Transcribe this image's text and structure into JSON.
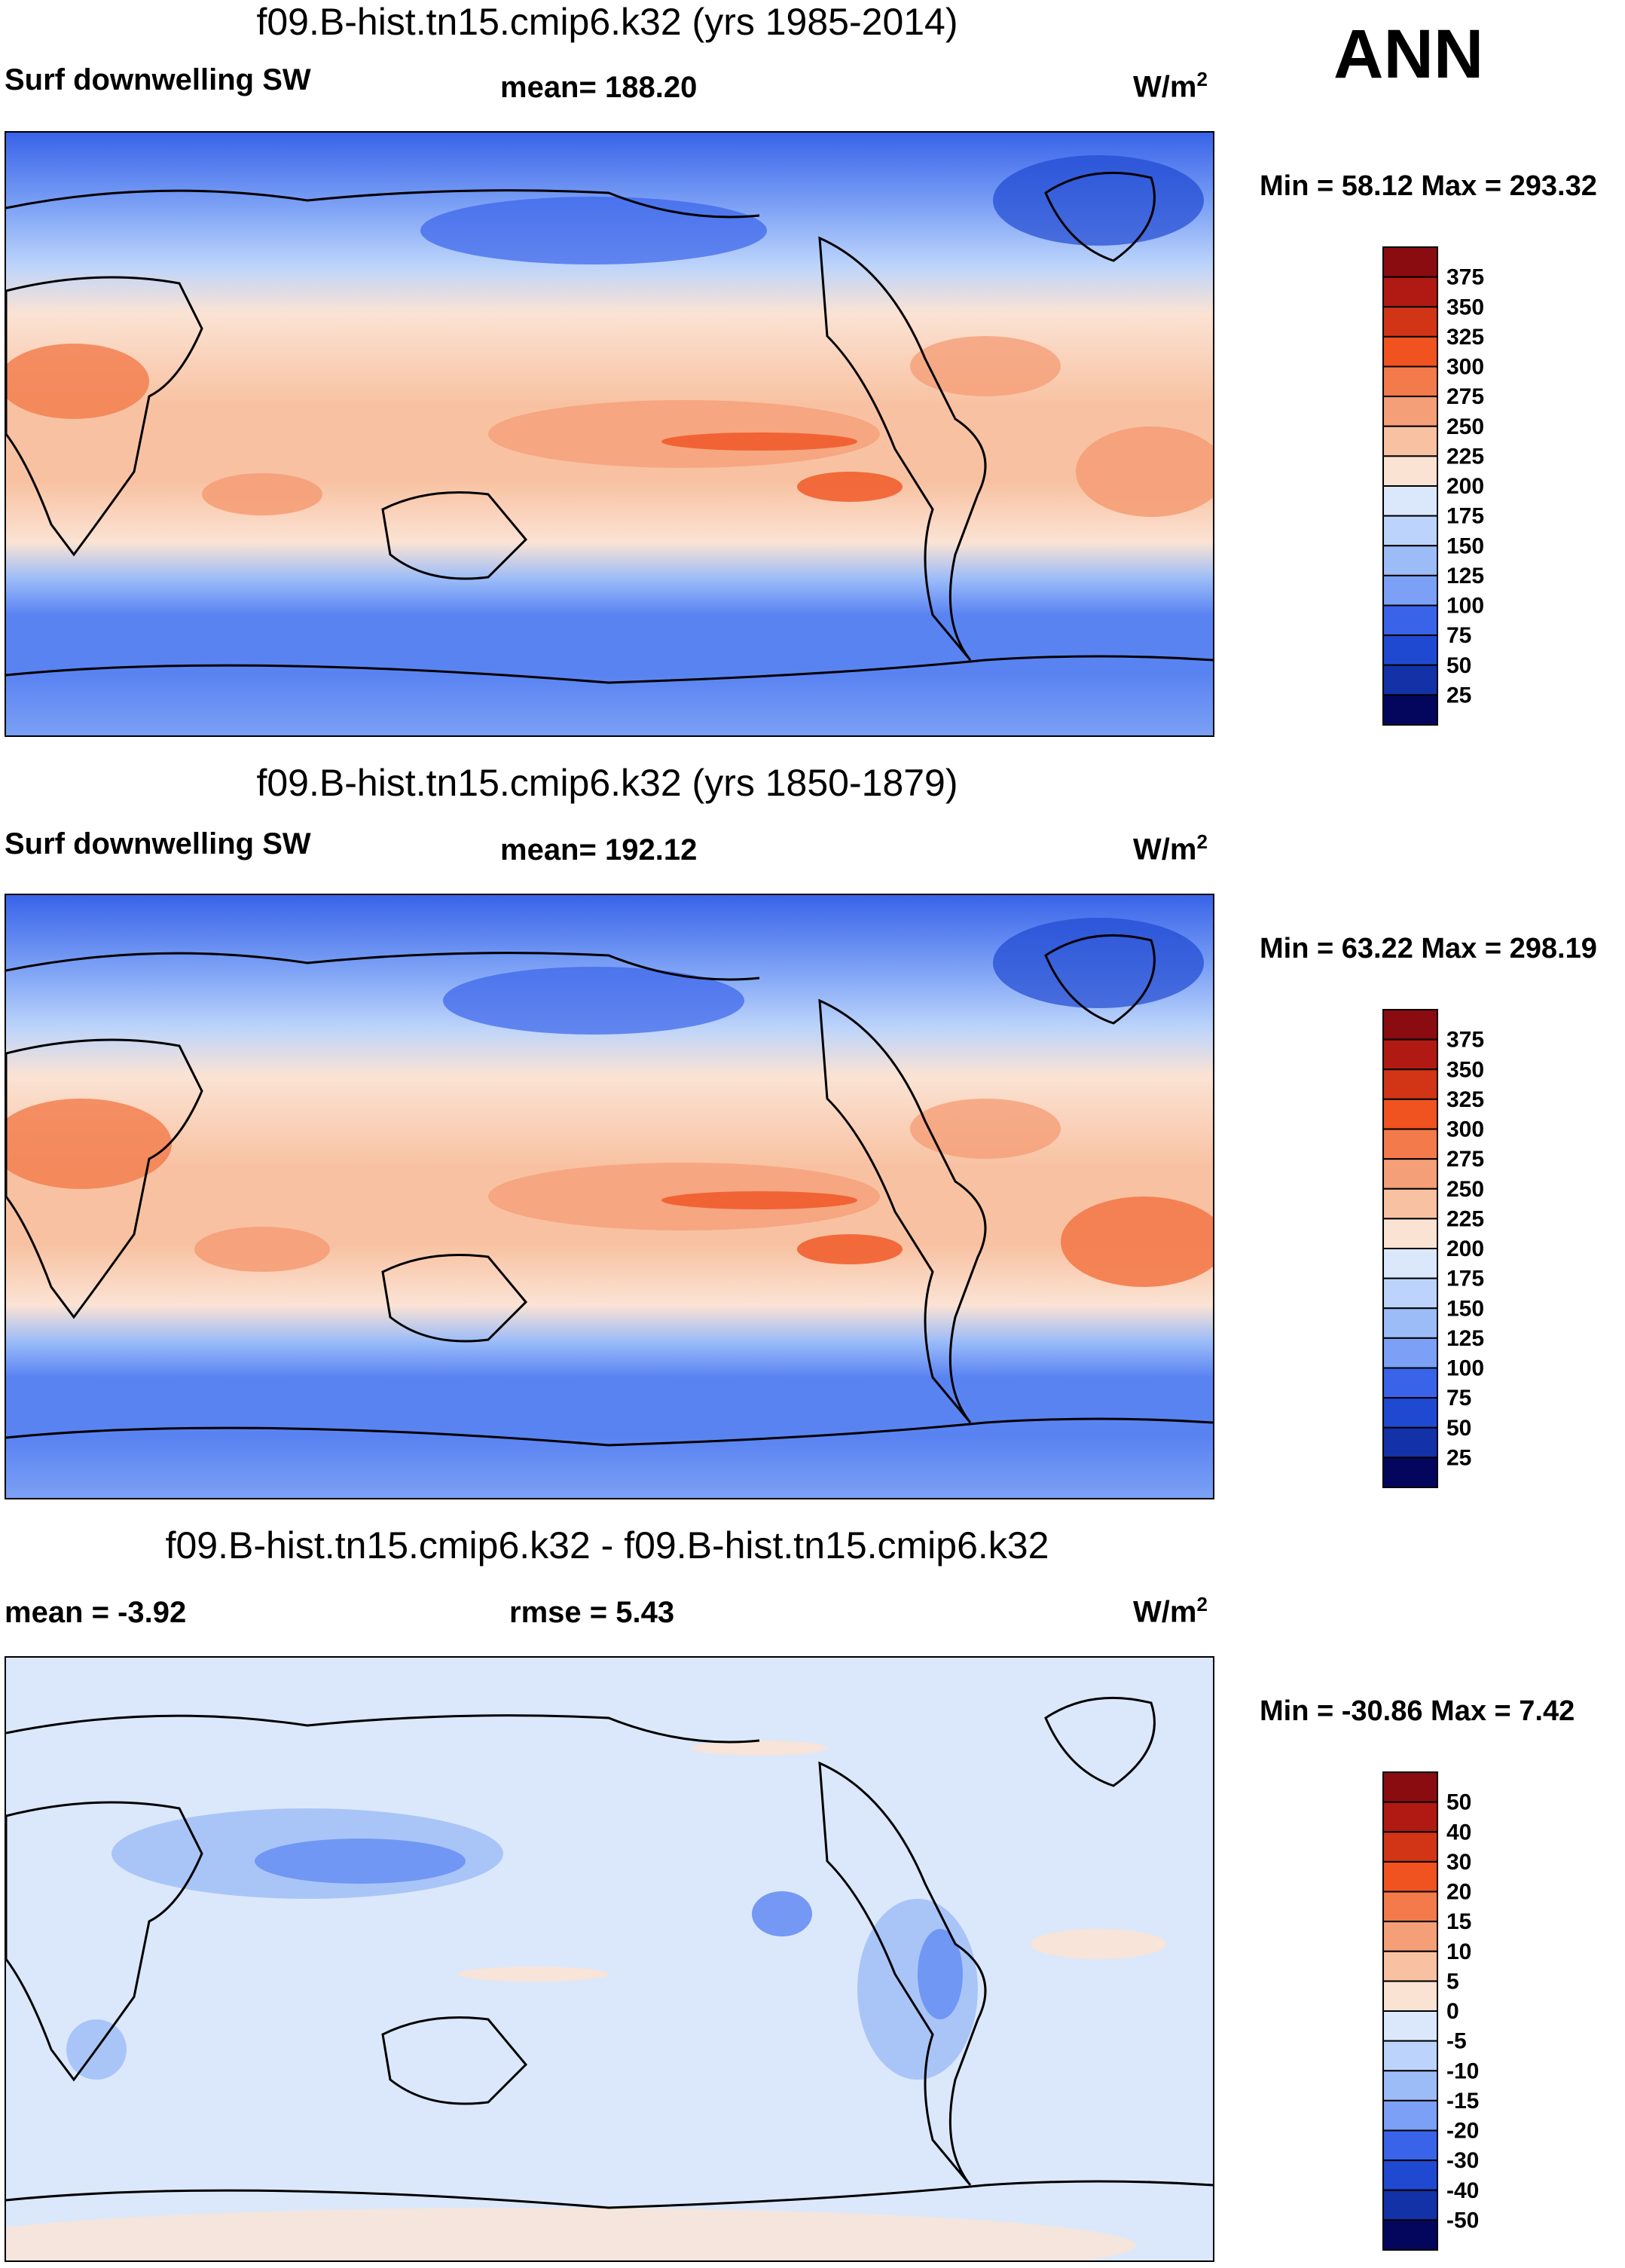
{
  "season": "ANN",
  "colors": {
    "pos": [
      "#fbe6d8",
      "#f8c6a7",
      "#f5a47c",
      "#f08358",
      "#eb6437",
      "#de4424",
      "#c5291a",
      "#a81814",
      "#8b0c10"
    ],
    "neg": [
      "#dbe8fb",
      "#bcd4fb",
      "#9cbcf8",
      "#7ba0f5",
      "#5a83f2",
      "#3963e9",
      "#2049d1",
      "#1332a8",
      "#0a1c80",
      "#04065e"
    ]
  },
  "panels": [
    {
      "id": "p1",
      "title": "f09.B-hist.tn15.cmip6.k32 (yrs 1985-2014)",
      "left_label": "Surf downwelling SW",
      "mid_label": "mean= 188.20",
      "units": "W/m",
      "units_exp": "2",
      "min_max": "Min =  58.12 Max = 293.32",
      "levels": [
        "375",
        "350",
        "325",
        "300",
        "275",
        "250",
        "225",
        "200",
        "175",
        "150",
        "125",
        "100",
        "75",
        "50",
        "25"
      ],
      "level_colors": [
        "#8b0c10",
        "#b01a12",
        "#d23416",
        "#f05220",
        "#f37a4a",
        "#f59f78",
        "#f8c2a2",
        "#fbe3d4",
        "#dbe8fb",
        "#bcd4fb",
        "#9cbcf8",
        "#7ba0f5",
        "#3963e9",
        "#2049d1",
        "#1332a8",
        "#04065e"
      ]
    },
    {
      "id": "p2",
      "title": "f09.B-hist.tn15.cmip6.k32 (yrs 1850-1879)",
      "left_label": "Surf downwelling SW",
      "mid_label": "mean= 192.12",
      "units": "W/m",
      "units_exp": "2",
      "min_max": "Min =  63.22 Max = 298.19",
      "levels": [
        "375",
        "350",
        "325",
        "300",
        "275",
        "250",
        "225",
        "200",
        "175",
        "150",
        "125",
        "100",
        "75",
        "50",
        "25"
      ],
      "level_colors": [
        "#8b0c10",
        "#b01a12",
        "#d23416",
        "#f05220",
        "#f37a4a",
        "#f59f78",
        "#f8c2a2",
        "#fbe3d4",
        "#dbe8fb",
        "#bcd4fb",
        "#9cbcf8",
        "#7ba0f5",
        "#3963e9",
        "#2049d1",
        "#1332a8",
        "#04065e"
      ]
    },
    {
      "id": "p3",
      "title": "f09.B-hist.tn15.cmip6.k32 - f09.B-hist.tn15.cmip6.k32",
      "left_label": "mean =  -3.92",
      "mid_label": "rmse =    5.43",
      "units": "W/m",
      "units_exp": "2",
      "min_max": "Min = -30.86 Max =   7.42",
      "levels": [
        "50",
        "40",
        "30",
        "20",
        "15",
        "10",
        "5",
        "0",
        "-5",
        "-10",
        "-15",
        "-20",
        "-30",
        "-40",
        "-50"
      ],
      "level_colors": [
        "#8b0c10",
        "#b01a12",
        "#d23416",
        "#f05220",
        "#f37a4a",
        "#f59f78",
        "#f8c2a2",
        "#fbe3d4",
        "#dbe8fb",
        "#bcd4fb",
        "#9cbcf8",
        "#7ba0f5",
        "#3963e9",
        "#2049d1",
        "#1332a8",
        "#04065e"
      ]
    }
  ]
}
